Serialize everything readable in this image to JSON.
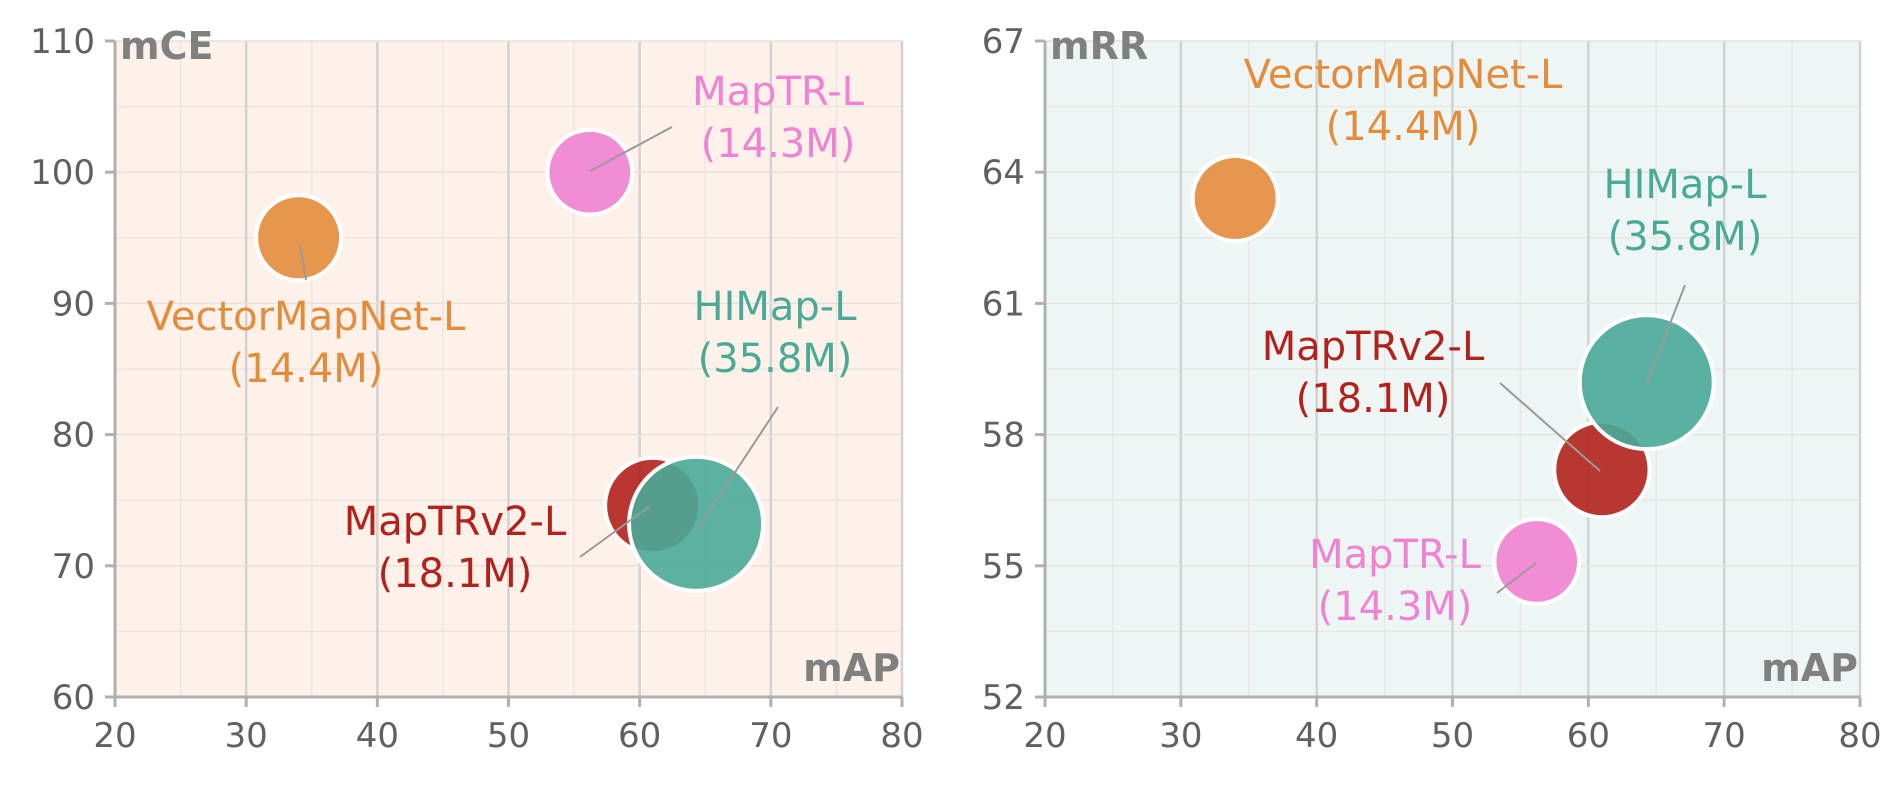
{
  "chart_data": [
    {
      "type": "scatter",
      "bubble": true,
      "corner_ylabel": "mCE",
      "corner_xlabel": "mAP",
      "background": "#fdf1e9",
      "xlim": [
        20,
        80
      ],
      "ylim": [
        60,
        110
      ],
      "xticks": [
        20,
        30,
        40,
        50,
        60,
        70,
        80
      ],
      "yticks": [
        60,
        70,
        80,
        90,
        100,
        110
      ],
      "xtick_labels": [
        "20",
        "30",
        "40",
        "50",
        "60",
        "70",
        "80"
      ],
      "ytick_labels": [
        "60",
        "70",
        "80",
        "90",
        "100",
        "110"
      ],
      "grid": true,
      "points": [
        {
          "name": "VectorMapNet-L",
          "params": "(14.4M)",
          "params_m": 14.4,
          "x": 34,
          "y": 95,
          "color": "#e48c3c"
        },
        {
          "name": "MapTR-L",
          "params": "(14.3M)",
          "params_m": 14.3,
          "x": 56.2,
          "y": 100,
          "color": "#ef82d2"
        },
        {
          "name": "MapTRv2-L",
          "params": "(18.1M)",
          "params_m": 18.1,
          "x": 61,
          "y": 74.6,
          "color": "#b1221c"
        },
        {
          "name": "HIMap-L",
          "params": "(35.8M)",
          "params_m": 35.8,
          "x": 64.3,
          "y": 73.2,
          "color": "#4aaa98"
        }
      ]
    },
    {
      "type": "scatter",
      "bubble": true,
      "corner_ylabel": "mRR",
      "corner_xlabel": "mAP",
      "background": "#eef6f5",
      "xlim": [
        20,
        80
      ],
      "ylim": [
        52,
        67
      ],
      "xticks": [
        20,
        30,
        40,
        50,
        60,
        70,
        80
      ],
      "yticks": [
        52,
        55,
        58,
        61,
        64,
        67
      ],
      "xtick_labels": [
        "20",
        "30",
        "40",
        "50",
        "60",
        "70",
        "80"
      ],
      "ytick_labels": [
        "52",
        "55",
        "58",
        "61",
        "64",
        "67"
      ],
      "grid": true,
      "points": [
        {
          "name": "VectorMapNet-L",
          "params": "(14.4M)",
          "params_m": 14.4,
          "x": 34,
          "y": 63.4,
          "color": "#e48c3c"
        },
        {
          "name": "MapTR-L",
          "params": "(14.3M)",
          "params_m": 14.3,
          "x": 56.2,
          "y": 55.1,
          "color": "#ef82d2"
        },
        {
          "name": "MapTRv2-L",
          "params": "(18.1M)",
          "params_m": 18.1,
          "x": 61,
          "y": 57.2,
          "color": "#b1221c"
        },
        {
          "name": "HIMap-L",
          "params": "(35.8M)",
          "params_m": 35.8,
          "x": 64.3,
          "y": 59.2,
          "color": "#4aaa98"
        }
      ]
    }
  ]
}
